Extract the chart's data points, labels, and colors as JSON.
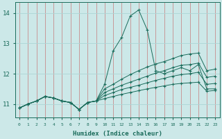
{
  "xlabel": "Humidex (Indice chaleur)",
  "bg_color": "#cce8e8",
  "line_color": "#1a6b5a",
  "grid_color": "#b0d8d8",
  "xlim": [
    -0.5,
    23.5
  ],
  "ylim": [
    10.55,
    14.35
  ],
  "xticks": [
    0,
    1,
    2,
    3,
    4,
    5,
    6,
    7,
    8,
    9,
    10,
    11,
    12,
    13,
    14,
    15,
    16,
    17,
    18,
    19,
    20,
    21,
    22,
    23
  ],
  "yticks": [
    11,
    12,
    13,
    14
  ],
  "series": [
    [
      10.87,
      11.0,
      11.1,
      11.25,
      11.2,
      11.1,
      11.05,
      10.82,
      11.05,
      11.1,
      11.65,
      12.75,
      13.2,
      13.9,
      14.1,
      13.45,
      12.1,
      12.0,
      12.1,
      12.2,
      12.1,
      12.3,
      11.5,
      11.5
    ],
    [
      10.87,
      11.0,
      11.1,
      11.25,
      11.2,
      11.1,
      11.05,
      10.82,
      11.05,
      11.1,
      11.5,
      11.65,
      11.82,
      11.97,
      12.1,
      12.22,
      12.32,
      12.4,
      12.5,
      12.6,
      12.65,
      12.68,
      12.1,
      12.15
    ],
    [
      10.87,
      11.0,
      11.1,
      11.25,
      11.2,
      11.1,
      11.05,
      10.82,
      11.05,
      11.1,
      11.38,
      11.5,
      11.62,
      11.72,
      11.82,
      11.92,
      12.02,
      12.1,
      12.2,
      12.28,
      12.3,
      12.35,
      11.88,
      11.92
    ],
    [
      10.87,
      11.0,
      11.1,
      11.25,
      11.2,
      11.1,
      11.05,
      10.82,
      11.05,
      11.1,
      11.28,
      11.38,
      11.48,
      11.55,
      11.62,
      11.7,
      11.78,
      11.85,
      11.92,
      11.97,
      12.0,
      12.05,
      11.65,
      11.68
    ],
    [
      10.87,
      11.0,
      11.1,
      11.25,
      11.2,
      11.1,
      11.05,
      10.82,
      11.05,
      11.1,
      11.18,
      11.25,
      11.32,
      11.38,
      11.44,
      11.5,
      11.55,
      11.6,
      11.65,
      11.68,
      11.7,
      11.72,
      11.42,
      11.45
    ]
  ]
}
